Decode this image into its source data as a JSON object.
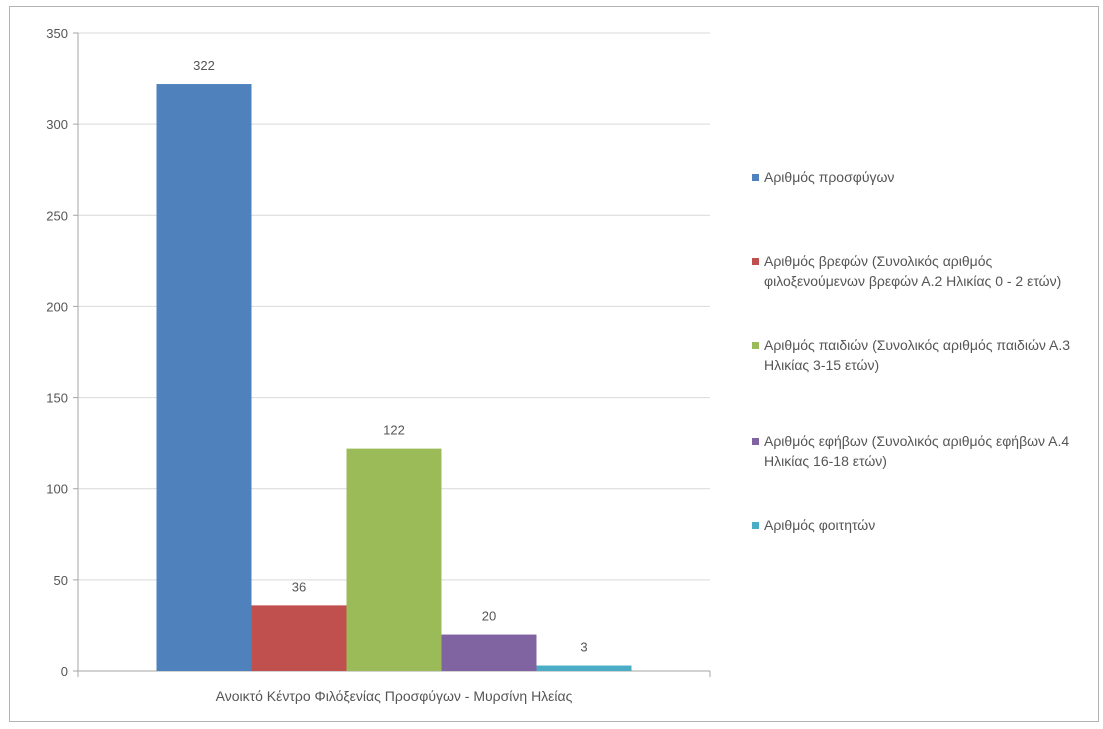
{
  "chart_data": {
    "type": "bar",
    "categories": [
      "Ανοικτό Κέντρο Φιλόξενίας Προσφύγων - Μυρσίνη Ηλείας"
    ],
    "series": [
      {
        "name": "Αριθμός προσφύγων",
        "values": [
          322
        ],
        "color": "#4f81bd"
      },
      {
        "name": "Αριθμός βρεφών (Συνολικός αριθμός φιλοξενούμενων βρεφών Α.2 Ηλικίας 0 - 2 ετών)",
        "values": [
          36
        ],
        "color": "#c0504d"
      },
      {
        "name": "Αριθμός παιδιών (Συνολικός αριθμός παιδιών Α.3 Ηλικίας 3-15 ετών)",
        "values": [
          122
        ],
        "color": "#9bbb59"
      },
      {
        "name": "Αριθμός εφήβων (Συνολικός αριθμός εφήβων Α.4 Ηλικίας 16-18 ετών)",
        "values": [
          20
        ],
        "color": "#8064a2"
      },
      {
        "name": "Αριθμός φοιτητών",
        "values": [
          3
        ],
        "color": "#4bacc6"
      }
    ],
    "y_ticks": [
      "0",
      "50",
      "100",
      "150",
      "200",
      "250",
      "300",
      "350"
    ],
    "ylim": [
      0,
      350
    ],
    "data_labels": [
      "322",
      "36",
      "122",
      "20",
      "3"
    ],
    "grid": true,
    "legend_position": "right"
  }
}
